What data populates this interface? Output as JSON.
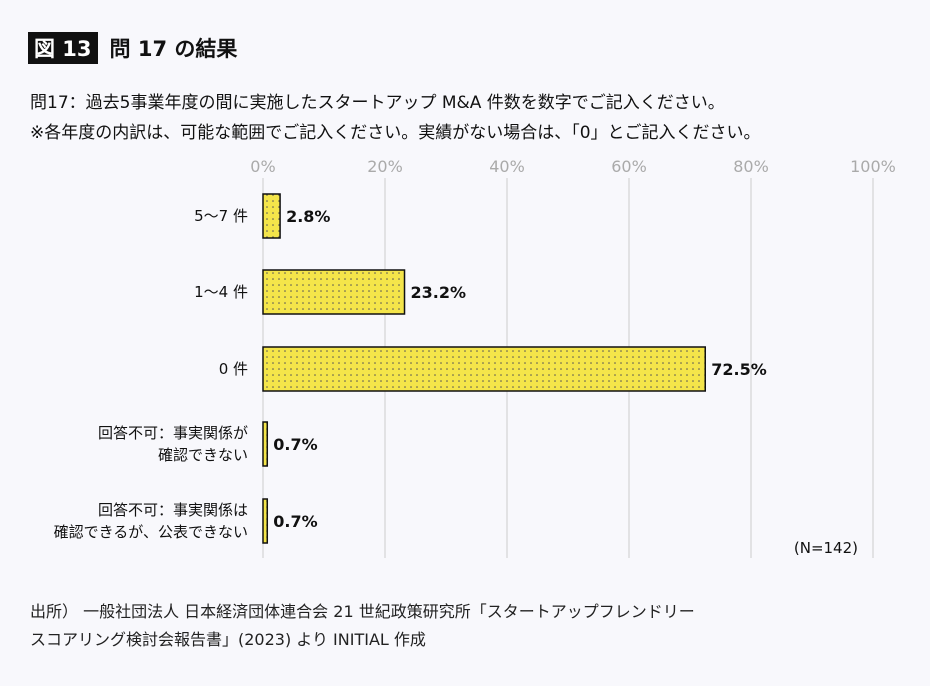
{
  "figure": {
    "tag": "図 13",
    "title": "問 17 の結果"
  },
  "question": {
    "line1": "問17：過去5事業年度の間に実施したスタートアップ M&A 件数を数字でご記入ください。",
    "line2": "※各年度の内訳は、可能な範囲でご記入ください。実績がない場合は、「0」とご記入ください。"
  },
  "chart_data": {
    "type": "bar",
    "orientation": "horizontal",
    "categories": [
      [
        "5〜7 件"
      ],
      [
        "1〜4 件"
      ],
      [
        "0 件"
      ],
      [
        "回答不可：事実関係が",
        "確認できない"
      ],
      [
        "回答不可：事実関係は",
        "確認できるが、公表できない"
      ]
    ],
    "values": [
      2.8,
      23.2,
      72.5,
      0.7,
      0.7
    ],
    "value_labels": [
      "2.8%",
      "23.2%",
      "72.5%",
      "0.7%",
      "0.7%"
    ],
    "xlim": [
      0,
      100
    ],
    "ticks": [
      "0%",
      "20%",
      "40%",
      "60%",
      "80%",
      "100%"
    ],
    "grid": true,
    "bar_color": "#f4e54a",
    "note": "(N=142)"
  },
  "source": {
    "line1": "出所） 一般社団法人 日本経済団体連合会 21 世紀政策研究所「スタートアップフレンドリー",
    "line2": "スコアリング検討会報告書」(2023) より INITIAL 作成"
  }
}
